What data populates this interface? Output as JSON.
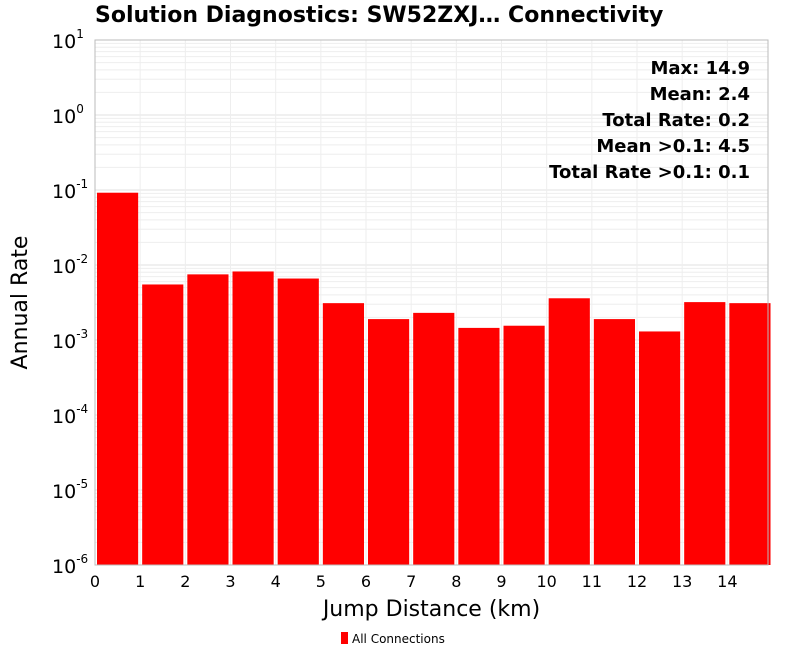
{
  "chart_data": {
    "type": "bar",
    "title": "Solution Diagnostics: SW52ZXJ… Connectivity",
    "xlabel": "Jump Distance (km)",
    "ylabel": "Annual Rate",
    "yscale": "log",
    "ylim": [
      1e-06,
      10
    ],
    "xlim": [
      0,
      14.9
    ],
    "x_ticks": [
      "0",
      "1",
      "2",
      "3",
      "4",
      "5",
      "6",
      "7",
      "8",
      "9",
      "10",
      "11",
      "12",
      "13",
      "14"
    ],
    "y_ticks": [
      {
        "base": "10",
        "exp": "1"
      },
      {
        "base": "10",
        "exp": "0"
      },
      {
        "base": "10",
        "exp": "-1"
      },
      {
        "base": "10",
        "exp": "-2"
      },
      {
        "base": "10",
        "exp": "-3"
      },
      {
        "base": "10",
        "exp": "-4"
      },
      {
        "base": "10",
        "exp": "-5"
      },
      {
        "base": "10",
        "exp": "-6"
      }
    ],
    "bin_width": 1,
    "bins": [
      0,
      1,
      2,
      3,
      4,
      5,
      6,
      7,
      8,
      9,
      10,
      11,
      12,
      13,
      14
    ],
    "series": [
      {
        "name": "All Connections",
        "color": "#ff0000",
        "values": [
          0.092,
          0.0055,
          0.0075,
          0.0082,
          0.0066,
          0.0031,
          0.0019,
          0.0023,
          0.00145,
          0.00155,
          0.0036,
          0.0019,
          0.0013,
          0.0032,
          0.0031
        ]
      }
    ],
    "annotations": [
      "Max: 14.9",
      "Mean: 2.4",
      "Total Rate: 0.2",
      "Mean >0.1: 4.5",
      "Total Rate >0.1: 0.1"
    ],
    "annotation_placement": "top-right",
    "grid": true,
    "legend_placement": "bottom-center",
    "legend": [
      "All Connections"
    ]
  }
}
